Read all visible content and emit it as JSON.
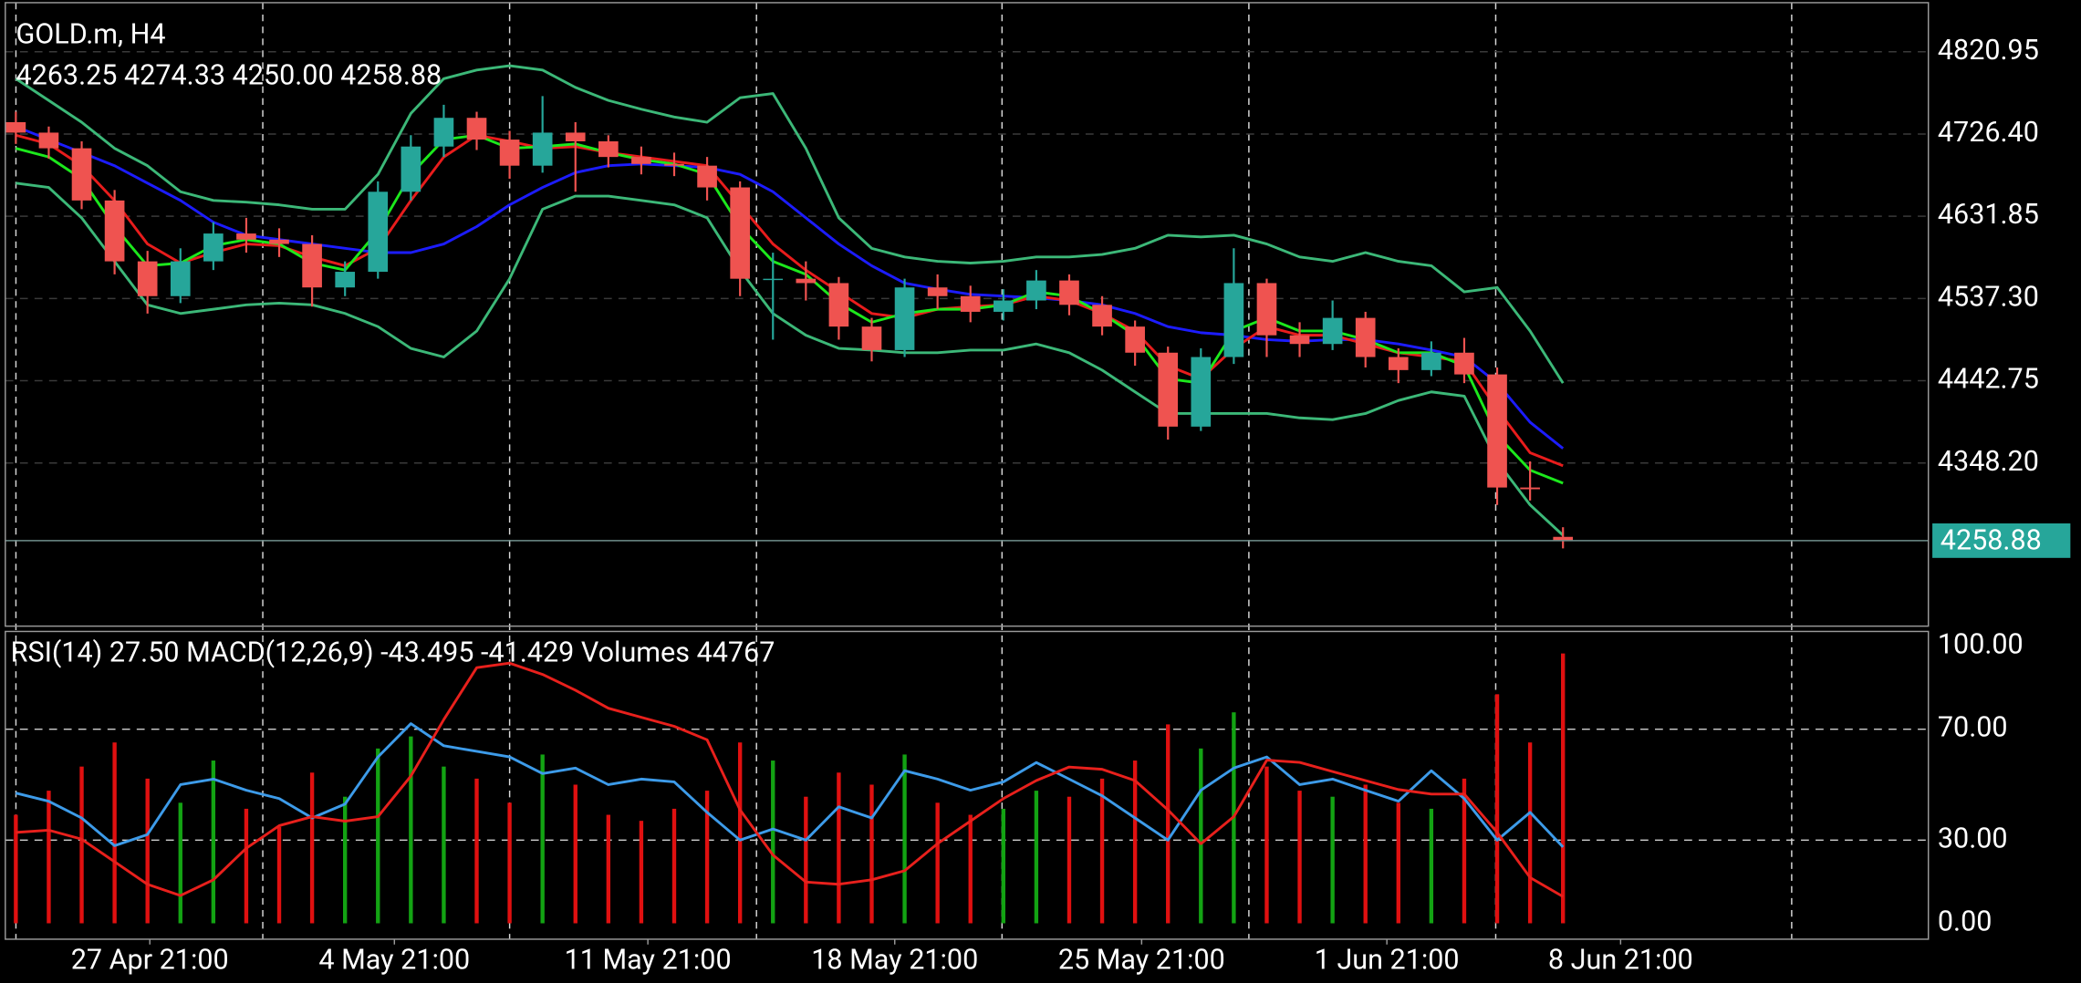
{
  "chart_data": [
    {
      "type": "candlestick",
      "title": "GOLD.m, H4",
      "subtitle": "4263.25 4274.33 4250.00 4258.88",
      "open": [
        4740,
        4728,
        4710,
        4650,
        4580,
        4540,
        4580,
        4612,
        4605,
        4600,
        4550,
        4568,
        4660,
        4712,
        4745,
        4720,
        4690,
        4728,
        4718,
        4700,
        4692,
        4690,
        4665,
        4560,
        4560,
        4555,
        4505,
        4478,
        4550,
        4540,
        4522,
        4535,
        4558,
        4530,
        4505,
        4475,
        4390,
        4470,
        4555,
        4495,
        4485,
        4515,
        4470,
        4455,
        4475,
        4450,
        4320,
        4263.25
      ],
      "high": [
        4752,
        4735,
        4718,
        4662,
        4592,
        4595,
        4625,
        4630,
        4618,
        4610,
        4580,
        4672,
        4725,
        4760,
        4752,
        4730,
        4770,
        4740,
        4725,
        4712,
        4705,
        4700,
        4672,
        4590,
        4580,
        4562,
        4515,
        4560,
        4565,
        4552,
        4548,
        4570,
        4565,
        4540,
        4512,
        4482,
        4480,
        4595,
        4560,
        4510,
        4535,
        4522,
        4480,
        4488,
        4492,
        4458,
        4350,
        4274.33
      ],
      "low": [
        4715,
        4698,
        4640,
        4565,
        4520,
        4532,
        4570,
        4590,
        4585,
        4528,
        4540,
        4560,
        4650,
        4700,
        4708,
        4675,
        4682,
        4660,
        4688,
        4680,
        4678,
        4650,
        4540,
        4490,
        4535,
        4490,
        4465,
        4470,
        4525,
        4510,
        4512,
        4525,
        4518,
        4495,
        4460,
        4375,
        4385,
        4462,
        4470,
        4470,
        4478,
        4458,
        4440,
        4448,
        4440,
        4300,
        4305,
        4250
      ],
      "close": [
        4728,
        4710,
        4650,
        4580,
        4540,
        4580,
        4612,
        4605,
        4600,
        4550,
        4568,
        4660,
        4712,
        4745,
        4720,
        4690,
        4728,
        4718,
        4700,
        4692,
        4690,
        4665,
        4560,
        4560,
        4555,
        4505,
        4478,
        4550,
        4540,
        4522,
        4535,
        4558,
        4530,
        4505,
        4475,
        4390,
        4470,
        4555,
        4495,
        4485,
        4515,
        4470,
        4455,
        4475,
        4450,
        4320,
        4318,
        4258.88
      ],
      "up_color": "#26a69a",
      "down_color": "#ef5350",
      "series": [
        {
          "color": "#1c1cff",
          "values": [
            4735,
            4720,
            4705,
            4690,
            4670,
            4650,
            4625,
            4610,
            4605,
            4600,
            4595,
            4590,
            4590,
            4600,
            4620,
            4645,
            4665,
            4682,
            4690,
            4692,
            4690,
            4688,
            4680,
            4660,
            4630,
            4600,
            4575,
            4555,
            4548,
            4542,
            4540,
            4538,
            4535,
            4530,
            4520,
            4505,
            4498,
            4495,
            4490,
            4488,
            4490,
            4490,
            4485,
            4478,
            4470,
            4440,
            4395,
            4365
          ]
        },
        {
          "color": "#e81c1c",
          "values": [
            4725,
            4715,
            4690,
            4650,
            4600,
            4578,
            4590,
            4600,
            4598,
            4585,
            4575,
            4595,
            4650,
            4700,
            4725,
            4718,
            4710,
            4712,
            4705,
            4700,
            4695,
            4690,
            4645,
            4600,
            4570,
            4545,
            4520,
            4515,
            4525,
            4528,
            4530,
            4540,
            4535,
            4520,
            4500,
            4460,
            4445,
            4480,
            4505,
            4495,
            4495,
            4485,
            4475,
            4470,
            4465,
            4410,
            4360,
            4345
          ]
        },
        {
          "color": "#1ce81c",
          "values": [
            4710,
            4700,
            4675,
            4620,
            4575,
            4578,
            4598,
            4605,
            4600,
            4578,
            4570,
            4615,
            4680,
            4720,
            4725,
            4710,
            4712,
            4715,
            4705,
            4697,
            4692,
            4680,
            4620,
            4580,
            4565,
            4532,
            4510,
            4520,
            4525,
            4525,
            4530,
            4545,
            4540,
            4520,
            4495,
            4445,
            4440,
            4500,
            4515,
            4500,
            4500,
            4490,
            4475,
            4475,
            4460,
            4380,
            4340,
            4325
          ]
        },
        {
          "color": "#3cb878",
          "values": [
            4790,
            4765,
            4740,
            4710,
            4690,
            4660,
            4650,
            4648,
            4645,
            4640,
            4640,
            4680,
            4750,
            4790,
            4800,
            4805,
            4800,
            4780,
            4765,
            4755,
            4746,
            4740,
            4768,
            4773,
            4710,
            4630,
            4595,
            4585,
            4580,
            4578,
            4580,
            4585,
            4585,
            4588,
            4595,
            4610,
            4608,
            4610,
            4600,
            4585,
            4580,
            4590,
            4580,
            4575,
            4545,
            4550,
            4500,
            4440
          ]
        },
        {
          "color": "#3cb878",
          "values": [
            4670,
            4665,
            4630,
            4580,
            4530,
            4520,
            4525,
            4530,
            4532,
            4530,
            4520,
            4505,
            4480,
            4470,
            4500,
            4560,
            4640,
            4655,
            4655,
            4650,
            4645,
            4630,
            4570,
            4520,
            4495,
            4480,
            4478,
            4475,
            4475,
            4478,
            4478,
            4485,
            4475,
            4455,
            4430,
            4405,
            4405,
            4405,
            4405,
            4400,
            4398,
            4405,
            4420,
            4430,
            4425,
            4350,
            4300,
            4265
          ]
        }
      ],
      "current_price": 4258.88,
      "current_price_color": "#26a69a",
      "ylim": [
        4160.6,
        4877.4
      ],
      "yticks": [
        4820.95,
        {
          "value": 4726.4,
          "label": "4726.40"
        },
        4631.85,
        {
          "value": 4537.3,
          "label": "4537.30"
        },
        4442.75,
        {
          "value": 4348.2,
          "label": "4348.20"
        }
      ],
      "grid": true,
      "xlim": [
        -0.32,
        58.1
      ],
      "xticks": [
        {
          "value": 4.07,
          "label": "27 Apr 21:00"
        },
        {
          "value": 11.5,
          "label": "4 May 21:00"
        },
        {
          "value": 19.2,
          "label": "11 May 21:00"
        },
        {
          "value": 26.7,
          "label": "18 May 21:00"
        },
        {
          "value": 34.2,
          "label": "25 May 21:00"
        },
        {
          "value": 41.65,
          "label": "1 Jun 21:00"
        },
        {
          "value": 48.75,
          "label": "8 Jun 21:00"
        }
      ]
    },
    {
      "type": "indicator",
      "title": "RSI(14) 27.50 MACD(12,26,9) -43.495 -41.429 Volumes 44767",
      "series": [
        {
          "color": "#3d9be9",
          "values": [
            47,
            44,
            38,
            28,
            32,
            50,
            52,
            48,
            45,
            38,
            43,
            60,
            72,
            64,
            62,
            60,
            54,
            56,
            50,
            52,
            51,
            40,
            30,
            34,
            30,
            42,
            38,
            55,
            52,
            48,
            51,
            58,
            52,
            46,
            38,
            30,
            48,
            56,
            60,
            50,
            52,
            48,
            44,
            55,
            45,
            30,
            40,
            27.5
          ]
        },
        {
          "color": "#e8201c",
          "axis": "y2",
          "values": [
            -15,
            -14,
            -18,
            -28,
            -38,
            -43,
            -36,
            -22,
            -12,
            -8,
            -10,
            -8,
            10,
            35,
            58,
            60,
            55,
            48,
            40,
            36,
            32,
            26,
            -5,
            -25,
            -37,
            -38,
            -36,
            -32,
            -20,
            -10,
            0,
            8,
            14,
            13,
            8,
            -5,
            -20,
            -8,
            17,
            16,
            12,
            8,
            4,
            2,
            2,
            -15,
            -35,
            -43.495
          ]
        }
      ],
      "volumes": [
        18000,
        22000,
        26000,
        30000,
        24000,
        20000,
        27000,
        19000,
        16000,
        25000,
        21000,
        29000,
        31000,
        26000,
        24000,
        20000,
        28000,
        23000,
        18000,
        17000,
        19000,
        22000,
        30000,
        27000,
        21000,
        25000,
        23000,
        28000,
        20000,
        18000,
        19000,
        22000,
        21000,
        24000,
        27000,
        33000,
        29000,
        35000,
        26000,
        22000,
        21000,
        23000,
        20000,
        19000,
        24000,
        38000,
        30000,
        44767
      ],
      "volume_up_color": "#13a313",
      "volume_down_color": "#e01010",
      "ylim": [
        0,
        100
      ],
      "y2lim": [
        -55.3,
        67.6
      ],
      "vlim": [
        0,
        46000
      ],
      "yticks": [
        {
          "value": 0,
          "label": "0.00"
        },
        {
          "value": 30,
          "label": "30.00"
        },
        {
          "value": 70,
          "label": "70.00"
        },
        {
          "value": 100,
          "label": "100.00"
        }
      ],
      "grid": true
    }
  ]
}
